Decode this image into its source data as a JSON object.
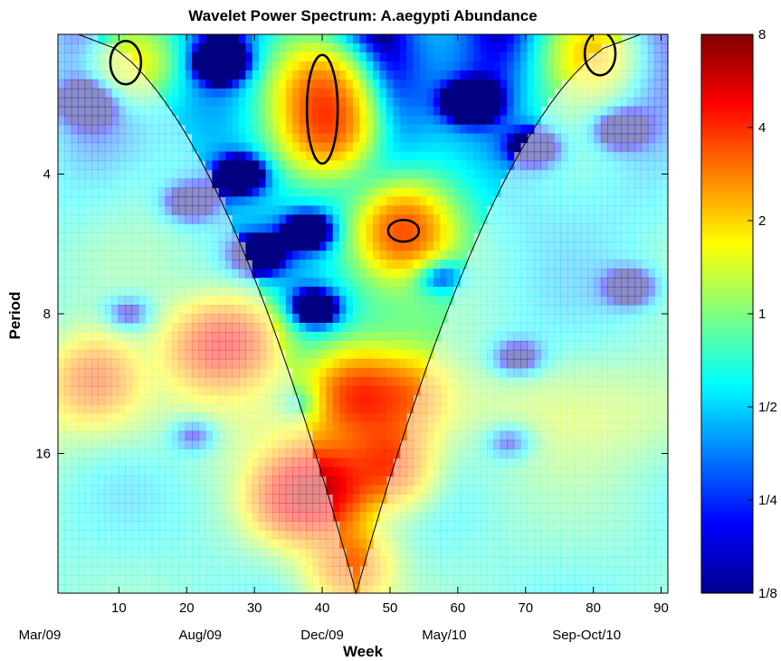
{
  "chart_data": {
    "type": "heatmap",
    "title": "Wavelet Power Spectrum: A.aegypti Abundance",
    "xlabel": "Week",
    "ylabel": "Period",
    "xlim": [
      1,
      91
    ],
    "ylim": [
      2,
      32
    ],
    "y_scale": "log2",
    "y_reversed": true,
    "x_ticks": [
      10,
      20,
      30,
      40,
      50,
      60,
      70,
      80,
      90
    ],
    "y_ticks": [
      {
        "value": 4,
        "label": "4"
      },
      {
        "value": 8,
        "label": "8"
      },
      {
        "value": 16,
        "label": "16"
      }
    ],
    "date_labels": [
      {
        "week": 1,
        "label": "Mar/09"
      },
      {
        "week": 22,
        "label": "Aug/09"
      },
      {
        "week": 40,
        "label": "Dec/09"
      },
      {
        "week": 58,
        "label": "May/10"
      },
      {
        "week": 79,
        "label": "Sep-Oct/10"
      }
    ],
    "colorbar": {
      "scale": "log2",
      "min": 0.125,
      "max": 8,
      "ticks": [
        {
          "value": 8,
          "label": "8"
        },
        {
          "value": 4,
          "label": "4"
        },
        {
          "value": 2,
          "label": "2"
        },
        {
          "value": 1,
          "label": "1"
        },
        {
          "value": 0.5,
          "label": "1/2"
        },
        {
          "value": 0.25,
          "label": "1/4"
        },
        {
          "value": 0.125,
          "label": "1/8"
        }
      ]
    },
    "colormap": "jet",
    "cone_of_influence": {
      "apex_week": 45,
      "apex_period": 32,
      "edge_weeks": [
        4,
        87
      ]
    },
    "power_blobs": [
      {
        "week": 11,
        "period": 2.3,
        "power": 2.0
      },
      {
        "week": 40,
        "period": 2.6,
        "power": 2.5
      },
      {
        "week": 41,
        "period": 3.2,
        "power": 3.0
      },
      {
        "week": 52,
        "period": 5.3,
        "power": 3.2
      },
      {
        "week": 81,
        "period": 2.2,
        "power": 2.0
      },
      {
        "week": 27,
        "period": 9.2,
        "power": 3.5
      },
      {
        "week": 22,
        "period": 9.5,
        "power": 2.5
      },
      {
        "week": 45,
        "period": 12,
        "power": 3.2
      },
      {
        "week": 53,
        "period": 12,
        "power": 2.2
      },
      {
        "week": 6,
        "period": 11,
        "power": 3.0
      },
      {
        "week": 40,
        "period": 19,
        "power": 4.5
      },
      {
        "week": 50,
        "period": 17,
        "power": 3.5
      },
      {
        "week": 35,
        "period": 20,
        "power": 3.5
      },
      {
        "week": 44,
        "period": 28,
        "power": 3.0
      }
    ],
    "low_spots": [
      {
        "week": 5,
        "period": 2.8,
        "power": 0.13
      },
      {
        "week": 25,
        "period": 2.3,
        "power": 0.13
      },
      {
        "week": 28,
        "period": 4.0,
        "power": 0.13
      },
      {
        "week": 20,
        "period": 4.6,
        "power": 0.13
      },
      {
        "week": 62,
        "period": 2.8,
        "power": 0.13
      },
      {
        "week": 72,
        "period": 3.5,
        "power": 0.13
      },
      {
        "week": 84,
        "period": 3.2,
        "power": 0.13
      },
      {
        "week": 30,
        "period": 6.0,
        "power": 0.13
      },
      {
        "week": 38,
        "period": 5.3,
        "power": 0.13
      },
      {
        "week": 57,
        "period": 6.6,
        "power": 0.13
      },
      {
        "week": 39,
        "period": 7.8,
        "power": 0.13
      },
      {
        "week": 11,
        "period": 8.0,
        "power": 0.13
      },
      {
        "week": 69,
        "period": 10,
        "power": 0.13
      },
      {
        "week": 37,
        "period": 12.5,
        "power": 0.13
      },
      {
        "week": 21,
        "period": 14.5,
        "power": 0.13
      },
      {
        "week": 68,
        "period": 15,
        "power": 0.13
      },
      {
        "week": 86,
        "period": 7.0,
        "power": 0.13
      }
    ],
    "significance_contours": [
      {
        "week": 11,
        "period": 2.3,
        "power": 2.0
      },
      {
        "week": 40,
        "period": 2.9,
        "power": 2.8
      },
      {
        "week": 52,
        "period": 5.3,
        "power": 3.2
      },
      {
        "week": 81,
        "period": 2.2,
        "power": 2.0
      }
    ]
  }
}
